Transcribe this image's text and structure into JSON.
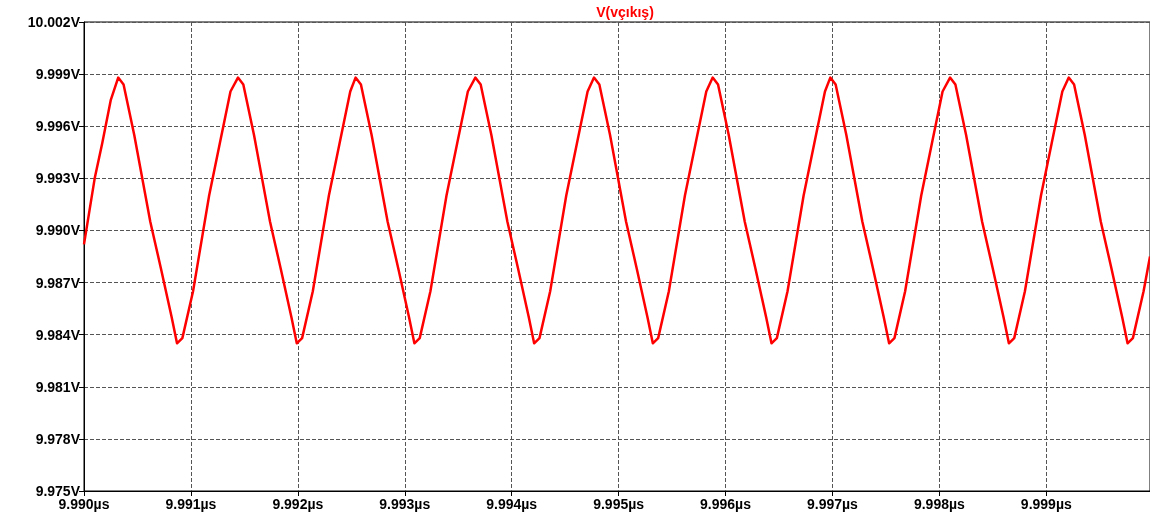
{
  "chart_data": {
    "type": "line",
    "title": "V(vçıkış)",
    "grid": true,
    "line_style": "solid",
    "marker": "none",
    "xlim": [
      9.99,
      9.99997
    ],
    "ylim": [
      9.975,
      10.002
    ],
    "xticks": [
      {
        "value": 9.99,
        "label": "9.990µs"
      },
      {
        "value": 9.991,
        "label": "9.991µs"
      },
      {
        "value": 9.992,
        "label": "9.992µs"
      },
      {
        "value": 9.993,
        "label": "9.993µs"
      },
      {
        "value": 9.994,
        "label": "9.994µs"
      },
      {
        "value": 9.995,
        "label": "9.995µs"
      },
      {
        "value": 9.996,
        "label": "9.996µs"
      },
      {
        "value": 9.997,
        "label": "9.997µs"
      },
      {
        "value": 9.998,
        "label": "9.998µs"
      },
      {
        "value": 9.999,
        "label": "9.999µs"
      }
    ],
    "yticks": [
      {
        "value": 9.975,
        "label": "9.975V"
      },
      {
        "value": 9.978,
        "label": "9.978V"
      },
      {
        "value": 9.981,
        "label": "9.981V"
      },
      {
        "value": 9.984,
        "label": "9.984V"
      },
      {
        "value": 9.987,
        "label": "9.987V"
      },
      {
        "value": 9.99,
        "label": "9.990V"
      },
      {
        "value": 9.993,
        "label": "9.993V"
      },
      {
        "value": 9.996,
        "label": "9.996V"
      },
      {
        "value": 9.999,
        "label": "9.999V"
      },
      {
        "value": 10.002,
        "label": "10.002V"
      }
    ],
    "series": [
      {
        "color": "#ff0000",
        "x": [
          9.99,
          9.9901,
          9.99017,
          9.99025,
          9.99032,
          9.99037,
          9.99047,
          9.99062,
          9.99072,
          9.99082,
          9.99087,
          9.99092,
          9.99102,
          9.99117,
          9.99127,
          9.99137,
          9.99144,
          9.99149,
          9.99159,
          9.99174,
          9.99184,
          9.99194,
          9.99199,
          9.99204,
          9.99214,
          9.99229,
          9.99239,
          9.99249,
          9.99254,
          9.99259,
          9.99269,
          9.99284,
          9.99294,
          9.99304,
          9.99309,
          9.99314,
          9.99324,
          9.99339,
          9.99349,
          9.99359,
          9.99366,
          9.99371,
          9.99381,
          9.99396,
          9.99406,
          9.99416,
          9.99421,
          9.99426,
          9.99436,
          9.99451,
          9.99461,
          9.99471,
          9.99477,
          9.99482,
          9.99492,
          9.99507,
          9.99517,
          9.99527,
          9.99532,
          9.99537,
          9.99547,
          9.99562,
          9.99572,
          9.99582,
          9.99588,
          9.99593,
          9.99603,
          9.99618,
          9.99628,
          9.99638,
          9.99643,
          9.99648,
          9.99658,
          9.99673,
          9.99683,
          9.99693,
          9.99698,
          9.99703,
          9.99713,
          9.99728,
          9.99738,
          9.99748,
          9.99753,
          9.99758,
          9.99768,
          9.99783,
          9.99793,
          9.99803,
          9.9981,
          9.99815,
          9.99825,
          9.9984,
          9.9985,
          9.9986,
          9.99865,
          9.9987,
          9.9988,
          9.99895,
          9.99905,
          9.99915,
          9.99921,
          9.99926,
          9.99936,
          9.99951,
          9.99961,
          9.99971,
          9.99976,
          9.99981,
          9.99991,
          9.99997
        ],
        "values": [
          9.9892,
          9.993,
          9.995,
          9.9975,
          9.9988,
          9.9984,
          9.9955,
          9.9905,
          9.9878,
          9.985,
          9.9835,
          9.9838,
          9.9865,
          9.992,
          9.995,
          9.998,
          9.9988,
          9.9984,
          9.9955,
          9.9905,
          9.9878,
          9.985,
          9.9835,
          9.9838,
          9.9865,
          9.992,
          9.995,
          9.998,
          9.9988,
          9.9984,
          9.9955,
          9.9905,
          9.9878,
          9.985,
          9.9835,
          9.9838,
          9.9865,
          9.992,
          9.995,
          9.998,
          9.9988,
          9.9984,
          9.9955,
          9.9905,
          9.9878,
          9.985,
          9.9835,
          9.9838,
          9.9865,
          9.992,
          9.995,
          9.998,
          9.9988,
          9.9984,
          9.9955,
          9.9905,
          9.9878,
          9.985,
          9.9835,
          9.9838,
          9.9865,
          9.992,
          9.995,
          9.998,
          9.9988,
          9.9984,
          9.9955,
          9.9905,
          9.9878,
          9.985,
          9.9835,
          9.9838,
          9.9865,
          9.992,
          9.995,
          9.998,
          9.9988,
          9.9984,
          9.9955,
          9.9905,
          9.9878,
          9.985,
          9.9835,
          9.9838,
          9.9865,
          9.992,
          9.995,
          9.998,
          9.9988,
          9.9984,
          9.9955,
          9.9905,
          9.9878,
          9.985,
          9.9835,
          9.9838,
          9.9865,
          9.992,
          9.995,
          9.998,
          9.9988,
          9.9984,
          9.9955,
          9.9905,
          9.9878,
          9.985,
          9.9835,
          9.9838,
          9.9865,
          9.9885
        ]
      }
    ]
  }
}
